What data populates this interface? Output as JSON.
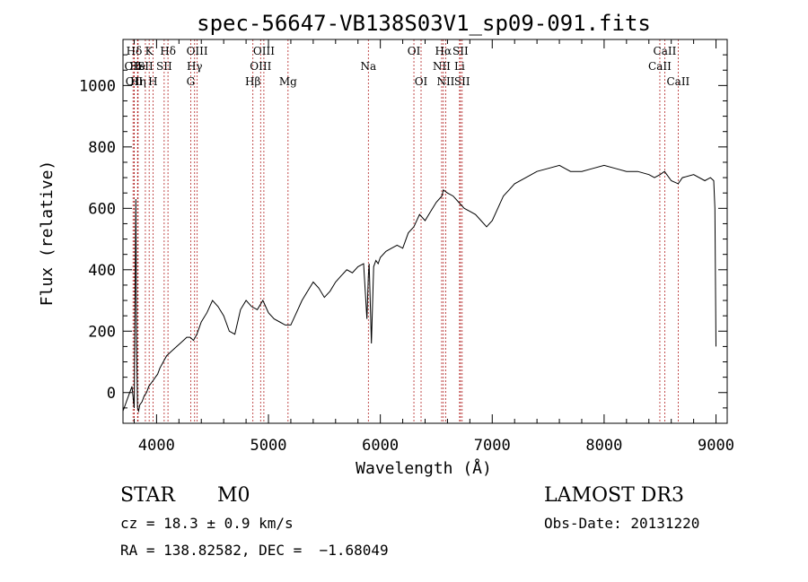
{
  "chart_data": {
    "type": "line",
    "title": "spec-56647-VB138S03V1_sp09-091.fits",
    "xlabel": "Wavelength (Å)",
    "ylabel": "Flux (relative)",
    "xlim": [
      3700,
      9100
    ],
    "ylim": [
      -100,
      1150
    ],
    "xticks": [
      4000,
      5000,
      6000,
      7000,
      8000,
      9000
    ],
    "yticks": [
      0,
      200,
      400,
      600,
      800,
      1000
    ],
    "grid": false,
    "series": [
      {
        "x": [
          3700,
          3720,
          3740,
          3760,
          3780,
          3800,
          3815,
          3822,
          3830,
          3840,
          3850,
          3870,
          3890,
          3910,
          3930,
          3950,
          3970,
          3990,
          4010,
          4030,
          4060,
          4090,
          4120,
          4150,
          4180,
          4210,
          4240,
          4270,
          4300,
          4330,
          4360,
          4400,
          4450,
          4500,
          4550,
          4600,
          4650,
          4700,
          4750,
          4800,
          4850,
          4900,
          4950,
          5000,
          5050,
          5100,
          5150,
          5200,
          5250,
          5300,
          5350,
          5400,
          5450,
          5500,
          5550,
          5600,
          5650,
          5700,
          5750,
          5800,
          5850,
          5880,
          5893,
          5900,
          5920,
          5940,
          5960,
          5980,
          6000,
          6050,
          6100,
          6150,
          6200,
          6250,
          6300,
          6350,
          6400,
          6450,
          6500,
          6550,
          6563,
          6600,
          6650,
          6700,
          6750,
          6800,
          6850,
          6900,
          6950,
          7000,
          7050,
          7100,
          7150,
          7200,
          7300,
          7400,
          7500,
          7600,
          7650,
          7700,
          7800,
          7900,
          8000,
          8100,
          8200,
          8300,
          8400,
          8450,
          8500,
          8540,
          8600,
          8662,
          8700,
          8800,
          8900,
          8950,
          8980,
          8990,
          9000
        ],
        "values": [
          -60,
          -40,
          -20,
          0,
          20,
          -50,
          630,
          150,
          -50,
          -60,
          -40,
          -30,
          -10,
          0,
          20,
          30,
          40,
          50,
          60,
          80,
          100,
          120,
          130,
          140,
          150,
          160,
          170,
          180,
          180,
          170,
          190,
          230,
          260,
          300,
          280,
          250,
          200,
          190,
          270,
          300,
          280,
          270,
          300,
          260,
          240,
          230,
          220,
          220,
          260,
          300,
          330,
          360,
          340,
          310,
          330,
          360,
          380,
          400,
          390,
          410,
          420,
          240,
          380,
          420,
          160,
          410,
          430,
          420,
          440,
          460,
          470,
          480,
          470,
          520,
          540,
          580,
          560,
          590,
          620,
          640,
          660,
          650,
          640,
          620,
          600,
          590,
          580,
          560,
          540,
          560,
          600,
          640,
          660,
          680,
          700,
          720,
          730,
          740,
          730,
          720,
          720,
          730,
          740,
          730,
          720,
          720,
          710,
          700,
          710,
          720,
          690,
          680,
          700,
          710,
          690,
          700,
          690,
          600,
          150
        ]
      }
    ],
    "spectral_lines": [
      {
        "label": "Hδ",
        "x": 3800,
        "row": 1
      },
      {
        "label": "OII",
        "x": 3790,
        "row": 2
      },
      {
        "label": "OII",
        "x": 3800,
        "row": 3
      },
      {
        "label": "He",
        "x": 3830,
        "row": 2
      },
      {
        "label": "Hη",
        "x": 3835,
        "row": 3
      },
      {
        "label": "K",
        "x": 3934,
        "row": 1
      },
      {
        "label": "SII",
        "x": 3900,
        "row": 2
      },
      {
        "label": "H",
        "x": 3968,
        "row": 3
      },
      {
        "label": "Hδ",
        "x": 4102,
        "row": 1
      },
      {
        "label": "SII",
        "x": 4068,
        "row": 2
      },
      {
        "label": "OIII",
        "x": 4363,
        "row": 1
      },
      {
        "label": "Hγ",
        "x": 4340,
        "row": 2
      },
      {
        "label": "G",
        "x": 4305,
        "row": 3
      },
      {
        "label": "OIII",
        "x": 4959,
        "row": 1
      },
      {
        "label": "OIII",
        "x": 4930,
        "row": 2
      },
      {
        "label": "Hβ",
        "x": 4861,
        "row": 3
      },
      {
        "label": "Mg",
        "x": 5175,
        "row": 3
      },
      {
        "label": "Na",
        "x": 5893,
        "row": 2
      },
      {
        "label": "OI",
        "x": 6300,
        "row": 1
      },
      {
        "label": "OI",
        "x": 6364,
        "row": 3
      },
      {
        "label": "Hα",
        "x": 6563,
        "row": 1
      },
      {
        "label": "NII",
        "x": 6548,
        "row": 2
      },
      {
        "label": "NII",
        "x": 6584,
        "row": 3
      },
      {
        "label": "SII",
        "x": 6716,
        "row": 1
      },
      {
        "label": "Li",
        "x": 6708,
        "row": 2
      },
      {
        "label": "SII",
        "x": 6731,
        "row": 3
      },
      {
        "label": "CaII",
        "x": 8542,
        "row": 1
      },
      {
        "label": "CaII",
        "x": 8498,
        "row": 2
      },
      {
        "label": "CaII",
        "x": 8662,
        "row": 3
      }
    ]
  },
  "footer": {
    "class_label": "STAR",
    "subclass": "M0",
    "survey": "LAMOST DR3",
    "cz": "cz = 18.3 ± 0.9 km/s",
    "obs_date": "Obs-Date: 20131220",
    "coords": "RA = 138.82582, DEC =  −1.68049"
  }
}
